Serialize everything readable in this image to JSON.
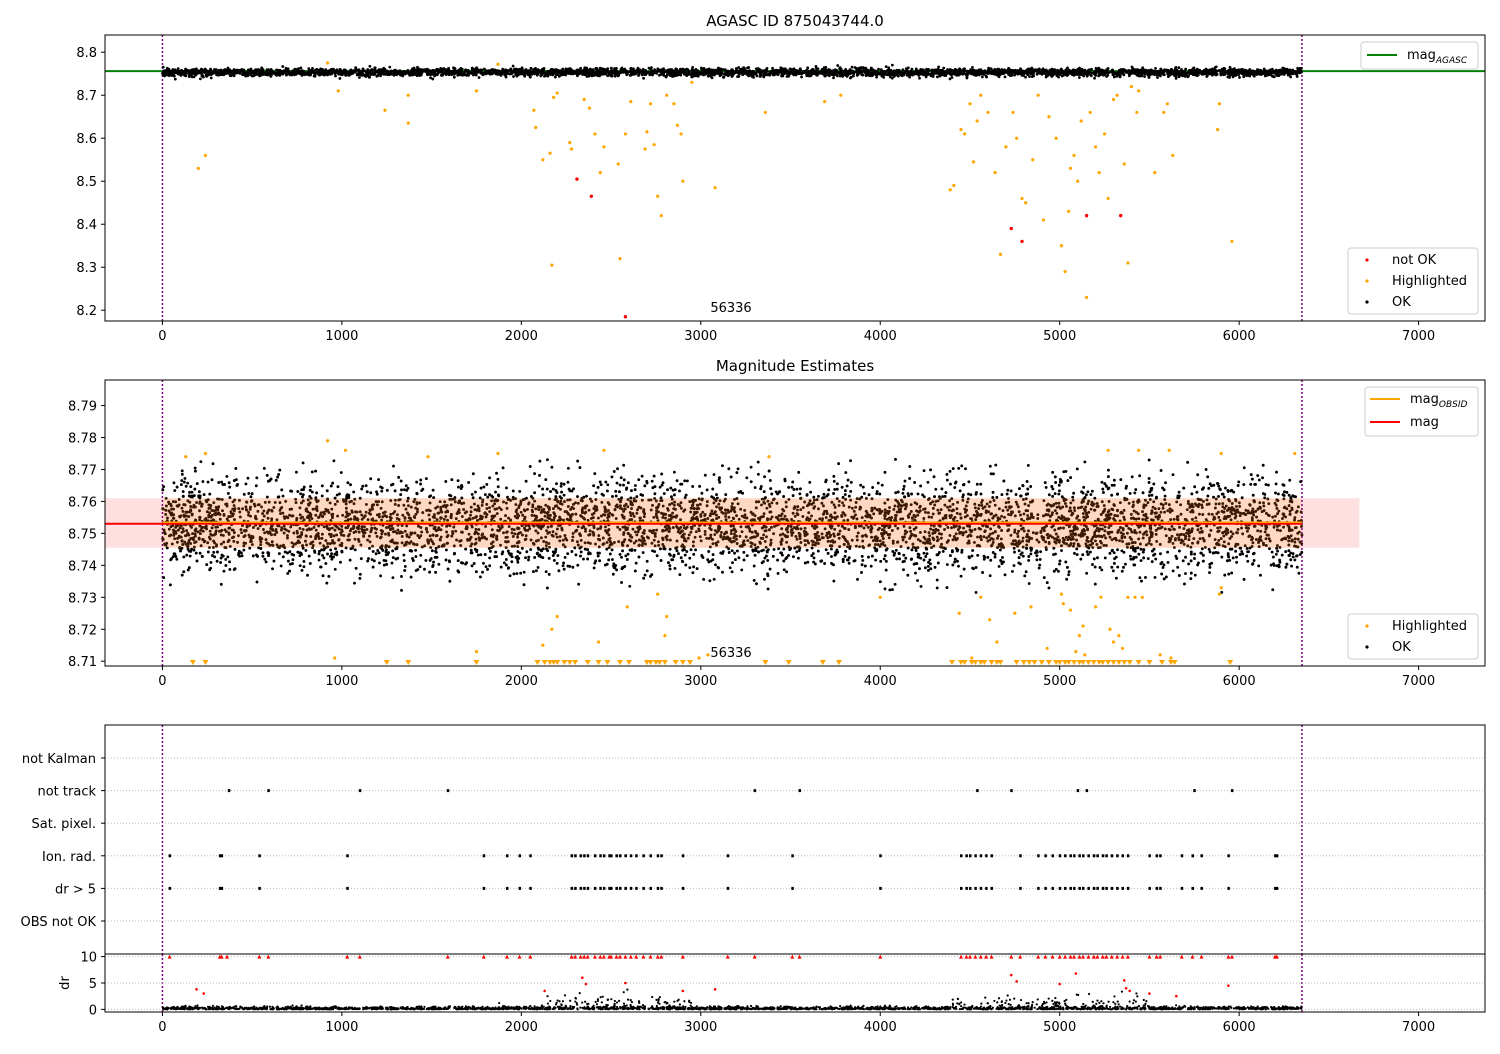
{
  "chart_data": [
    {
      "id": "agasc",
      "type": "scatter",
      "title": "AGASC ID 875043744.0",
      "annotation": "56336",
      "xlim": [
        -320,
        7370
      ],
      "ylim": [
        8.175,
        8.84
      ],
      "x_ticks": [
        0,
        1000,
        2000,
        3000,
        4000,
        5000,
        6000,
        7000
      ],
      "y_ticks": [
        8.2,
        8.3,
        8.4,
        8.5,
        8.6,
        8.7,
        8.8
      ],
      "vlines": [
        0,
        6350
      ],
      "hline": {
        "label": "mag$_{AGASC}$",
        "value": 8.756,
        "color": "#008000"
      },
      "legend_top": [
        {
          "label": "mag",
          "sub": "AGASC",
          "color": "#008000"
        }
      ],
      "legend_bottom": [
        {
          "label": "not OK",
          "color": "#ff0000"
        },
        {
          "label": "Highlighted",
          "color": "#ffa500"
        },
        {
          "label": "OK",
          "color": "#000000"
        }
      ],
      "ok_band": {
        "x": [
          0,
          6350
        ],
        "center": 8.753,
        "spread": 0.01
      },
      "highlighted_points": [
        [
          200,
          8.53
        ],
        [
          240,
          8.56
        ],
        [
          1240,
          8.665
        ],
        [
          1370,
          8.7
        ],
        [
          1370,
          8.635
        ],
        [
          980,
          8.71
        ],
        [
          1750,
          8.71
        ],
        [
          2070,
          8.665
        ],
        [
          2080,
          8.625
        ],
        [
          2120,
          8.55
        ],
        [
          2160,
          8.565
        ],
        [
          2170,
          8.305
        ],
        [
          2180,
          8.695
        ],
        [
          2200,
          8.705
        ],
        [
          2270,
          8.59
        ],
        [
          2280,
          8.575
        ],
        [
          2350,
          8.69
        ],
        [
          2380,
          8.67
        ],
        [
          2410,
          8.61
        ],
        [
          2440,
          8.52
        ],
        [
          2460,
          8.58
        ],
        [
          2540,
          8.54
        ],
        [
          2550,
          8.32
        ],
        [
          2580,
          8.61
        ],
        [
          2610,
          8.685
        ],
        [
          2690,
          8.575
        ],
        [
          2700,
          8.615
        ],
        [
          2720,
          8.68
        ],
        [
          2740,
          8.585
        ],
        [
          2760,
          8.465
        ],
        [
          2780,
          8.42
        ],
        [
          2810,
          8.7
        ],
        [
          2850,
          8.68
        ],
        [
          2870,
          8.63
        ],
        [
          2890,
          8.61
        ],
        [
          2900,
          8.5
        ],
        [
          2950,
          8.73
        ],
        [
          3080,
          8.485
        ],
        [
          3360,
          8.66
        ],
        [
          3690,
          8.685
        ],
        [
          3780,
          8.7
        ],
        [
          4390,
          8.48
        ],
        [
          4410,
          8.49
        ],
        [
          4450,
          8.62
        ],
        [
          4470,
          8.61
        ],
        [
          4500,
          8.68
        ],
        [
          4520,
          8.545
        ],
        [
          4540,
          8.64
        ],
        [
          4560,
          8.7
        ],
        [
          4600,
          8.66
        ],
        [
          4640,
          8.52
        ],
        [
          4670,
          8.33
        ],
        [
          4700,
          8.58
        ],
        [
          4740,
          8.66
        ],
        [
          4760,
          8.6
        ],
        [
          4790,
          8.46
        ],
        [
          4810,
          8.45
        ],
        [
          4850,
          8.55
        ],
        [
          4880,
          8.7
        ],
        [
          4910,
          8.41
        ],
        [
          4940,
          8.65
        ],
        [
          4980,
          8.6
        ],
        [
          5010,
          8.35
        ],
        [
          5030,
          8.29
        ],
        [
          5050,
          8.43
        ],
        [
          5060,
          8.53
        ],
        [
          5080,
          8.56
        ],
        [
          5100,
          8.5
        ],
        [
          5120,
          8.64
        ],
        [
          5150,
          8.23
        ],
        [
          5170,
          8.66
        ],
        [
          5200,
          8.58
        ],
        [
          5220,
          8.52
        ],
        [
          5250,
          8.61
        ],
        [
          5270,
          8.46
        ],
        [
          5300,
          8.69
        ],
        [
          5320,
          8.7
        ],
        [
          5360,
          8.54
        ],
        [
          5380,
          8.31
        ],
        [
          5400,
          8.72
        ],
        [
          5430,
          8.66
        ],
        [
          5440,
          8.71
        ],
        [
          5530,
          8.52
        ],
        [
          5580,
          8.66
        ],
        [
          5600,
          8.68
        ],
        [
          5630,
          8.56
        ],
        [
          5960,
          8.36
        ],
        [
          5880,
          8.62
        ],
        [
          5890,
          8.68
        ],
        [
          920,
          8.775
        ],
        [
          1870,
          8.772
        ]
      ],
      "not_ok_points": [
        [
          2310,
          8.505
        ],
        [
          2390,
          8.465
        ],
        [
          2580,
          8.185
        ],
        [
          4730,
          8.39
        ],
        [
          4790,
          8.36
        ],
        [
          5150,
          8.42
        ],
        [
          5340,
          8.42
        ]
      ]
    },
    {
      "id": "estimates",
      "type": "scatter",
      "title": "Magnitude Estimates",
      "annotation": "56336",
      "xlim": [
        -320,
        7370
      ],
      "ylim": [
        8.7085,
        8.798
      ],
      "x_ticks": [
        0,
        1000,
        2000,
        3000,
        4000,
        5000,
        6000,
        7000
      ],
      "y_ticks": [
        8.71,
        8.72,
        8.73,
        8.74,
        8.75,
        8.76,
        8.77,
        8.78,
        8.79
      ],
      "vlines": [
        0,
        6350
      ],
      "legend_top": [
        {
          "label": "mag",
          "sub": "OBSID",
          "color": "#ffa500"
        },
        {
          "label": "mag",
          "sub": "",
          "color": "#ff0000"
        }
      ],
      "legend_bottom": [
        {
          "label": "Highlighted",
          "color": "#ffa500"
        },
        {
          "label": "OK",
          "color": "#000000"
        }
      ],
      "mag_line": {
        "value": 8.753,
        "x": [
          -320,
          6350
        ],
        "color": "#ff0000"
      },
      "mag_band": {
        "low": 8.7455,
        "high": 8.761,
        "x": [
          -320,
          6670
        ]
      },
      "obsid_line": {
        "value": 8.7535,
        "x": [
          0,
          6350
        ],
        "color": "#ffa500"
      },
      "highlighted_points": [
        [
          130,
          8.774
        ],
        [
          960,
          8.711
        ],
        [
          920,
          8.779
        ],
        [
          1020,
          8.776
        ],
        [
          1480,
          8.774
        ],
        [
          1750,
          8.713
        ],
        [
          1870,
          8.775
        ],
        [
          2120,
          8.715
        ],
        [
          2170,
          8.72
        ],
        [
          2200,
          8.724
        ],
        [
          2430,
          8.716
        ],
        [
          2460,
          8.776
        ],
        [
          2590,
          8.727
        ],
        [
          2760,
          8.731
        ],
        [
          2810,
          8.724
        ],
        [
          2800,
          8.718
        ],
        [
          2990,
          8.711
        ],
        [
          3040,
          8.712
        ],
        [
          3380,
          8.774
        ],
        [
          4000,
          8.73
        ],
        [
          4440,
          8.725
        ],
        [
          4510,
          8.711
        ],
        [
          4560,
          8.73
        ],
        [
          4610,
          8.723
        ],
        [
          4650,
          8.716
        ],
        [
          4750,
          8.725
        ],
        [
          4840,
          8.727
        ],
        [
          4930,
          8.714
        ],
        [
          5010,
          8.731
        ],
        [
          5020,
          8.728
        ],
        [
          5060,
          8.726
        ],
        [
          5090,
          8.713
        ],
        [
          5110,
          8.718
        ],
        [
          5130,
          8.721
        ],
        [
          5140,
          8.712
        ],
        [
          5200,
          8.727
        ],
        [
          5230,
          8.73
        ],
        [
          5280,
          8.72
        ],
        [
          5300,
          8.716
        ],
        [
          5330,
          8.718
        ],
        [
          5350,
          8.714
        ],
        [
          5380,
          8.73
        ],
        [
          5420,
          8.73
        ],
        [
          5460,
          8.73
        ],
        [
          5560,
          8.712
        ],
        [
          5620,
          8.711
        ],
        [
          5890,
          8.731
        ],
        [
          5900,
          8.733
        ],
        [
          5270,
          8.776
        ],
        [
          5440,
          8.776
        ],
        [
          5610,
          8.776
        ],
        [
          5900,
          8.775
        ],
        [
          6310,
          8.775
        ],
        [
          240,
          8.775
        ]
      ],
      "floor_markers_x": [
        170,
        240,
        1250,
        1370,
        1750,
        2090,
        2130,
        2160,
        2180,
        2200,
        2240,
        2270,
        2300,
        2370,
        2430,
        2480,
        2550,
        2600,
        2700,
        2720,
        2750,
        2770,
        2800,
        2860,
        2900,
        2940,
        3360,
        3490,
        3680,
        3770,
        4400,
        4450,
        4470,
        4510,
        4530,
        4560,
        4580,
        4620,
        4650,
        4670,
        4760,
        4800,
        4830,
        4860,
        4900,
        4940,
        4980,
        5000,
        5030,
        5050,
        5080,
        5110,
        5130,
        5160,
        5190,
        5220,
        5240,
        5270,
        5300,
        5330,
        5360,
        5390,
        5440,
        5500,
        5570,
        5620,
        5640,
        5950
      ],
      "ok_band": {
        "x": [
          0,
          6350
        ],
        "center": 8.7525,
        "spread": 0.0072
      }
    },
    {
      "id": "flags",
      "type": "scatter",
      "xlim": [
        -320,
        7370
      ],
      "categories": [
        "OBS not OK",
        "dr > 5",
        "Ion. rad.",
        "Sat. pixel.",
        "not track",
        "not Kalman"
      ],
      "vlines": [
        0,
        6350
      ],
      "flag_points": {
        "not track": [
          370,
          590,
          1100,
          1590,
          3300,
          3550,
          4540,
          4730,
          5100,
          5150,
          5750,
          5960
        ],
        "Ion. rad.": [
          40,
          320,
          330,
          540,
          1030,
          1790,
          1920,
          1990,
          2050,
          2280,
          2300,
          2330,
          2350,
          2370,
          2410,
          2440,
          2460,
          2490,
          2500,
          2530,
          2550,
          2580,
          2610,
          2640,
          2680,
          2720,
          2760,
          2780,
          2900,
          3150,
          3510,
          4000,
          4450,
          4480,
          4500,
          4530,
          4560,
          4590,
          4620,
          4780,
          4880,
          4920,
          4960,
          5000,
          5030,
          5060,
          5080,
          5110,
          5130,
          5160,
          5190,
          5210,
          5240,
          5260,
          5290,
          5320,
          5350,
          5380,
          5500,
          5540,
          5560,
          5680,
          5740,
          5790,
          5940,
          6200,
          6210
        ],
        "dr > 5": [
          40,
          320,
          330,
          540,
          1030,
          1790,
          1920,
          1990,
          2050,
          2280,
          2300,
          2330,
          2350,
          2370,
          2410,
          2440,
          2460,
          2490,
          2500,
          2530,
          2550,
          2580,
          2610,
          2640,
          2680,
          2720,
          2760,
          2780,
          2900,
          3150,
          3510,
          4000,
          4450,
          4480,
          4500,
          4530,
          4560,
          4590,
          4620,
          4780,
          4880,
          4920,
          4960,
          5000,
          5030,
          5060,
          5080,
          5110,
          5130,
          5160,
          5190,
          5210,
          5240,
          5260,
          5290,
          5320,
          5350,
          5380,
          5500,
          5540,
          5560,
          5680,
          5740,
          5790,
          5940,
          6200,
          6210
        ]
      }
    },
    {
      "id": "dr",
      "type": "scatter",
      "ylabel": "dr",
      "xlim": [
        -320,
        7370
      ],
      "ylim": [
        -0.5,
        10.5
      ],
      "x_ticks": [
        0,
        1000,
        2000,
        3000,
        4000,
        5000,
        6000,
        7000
      ],
      "y_ticks": [
        0,
        5,
        10
      ],
      "vlines": [
        0,
        6350
      ],
      "capped_points_x": [
        40,
        320,
        330,
        360,
        540,
        590,
        1030,
        1100,
        1590,
        1790,
        1920,
        1990,
        2050,
        2280,
        2300,
        2330,
        2350,
        2370,
        2410,
        2440,
        2460,
        2490,
        2500,
        2530,
        2550,
        2580,
        2610,
        2640,
        2680,
        2720,
        2760,
        2780,
        2900,
        3150,
        3300,
        3510,
        3550,
        4000,
        4450,
        4480,
        4500,
        4530,
        4560,
        4590,
        4620,
        4730,
        4780,
        4880,
        4920,
        4960,
        5000,
        5030,
        5060,
        5080,
        5110,
        5130,
        5160,
        5190,
        5210,
        5240,
        5260,
        5290,
        5320,
        5350,
        5380,
        5500,
        5540,
        5560,
        5680,
        5740,
        5790,
        5940,
        5960,
        6200,
        6210
      ],
      "mid_red_points": [
        [
          190,
          3.8
        ],
        [
          230,
          3.0
        ],
        [
          2130,
          3.5
        ],
        [
          2340,
          6.0
        ],
        [
          2360,
          4.8
        ],
        [
          2580,
          5.0
        ],
        [
          2900,
          3.5
        ],
        [
          3080,
          3.8
        ],
        [
          4730,
          6.5
        ],
        [
          4760,
          5.3
        ],
        [
          5090,
          6.8
        ],
        [
          5000,
          4.8
        ],
        [
          5360,
          5.5
        ],
        [
          5370,
          4.0
        ],
        [
          5390,
          3.5
        ],
        [
          5940,
          4.5
        ],
        [
          5500,
          3.0
        ],
        [
          5650,
          2.5
        ]
      ]
    }
  ]
}
